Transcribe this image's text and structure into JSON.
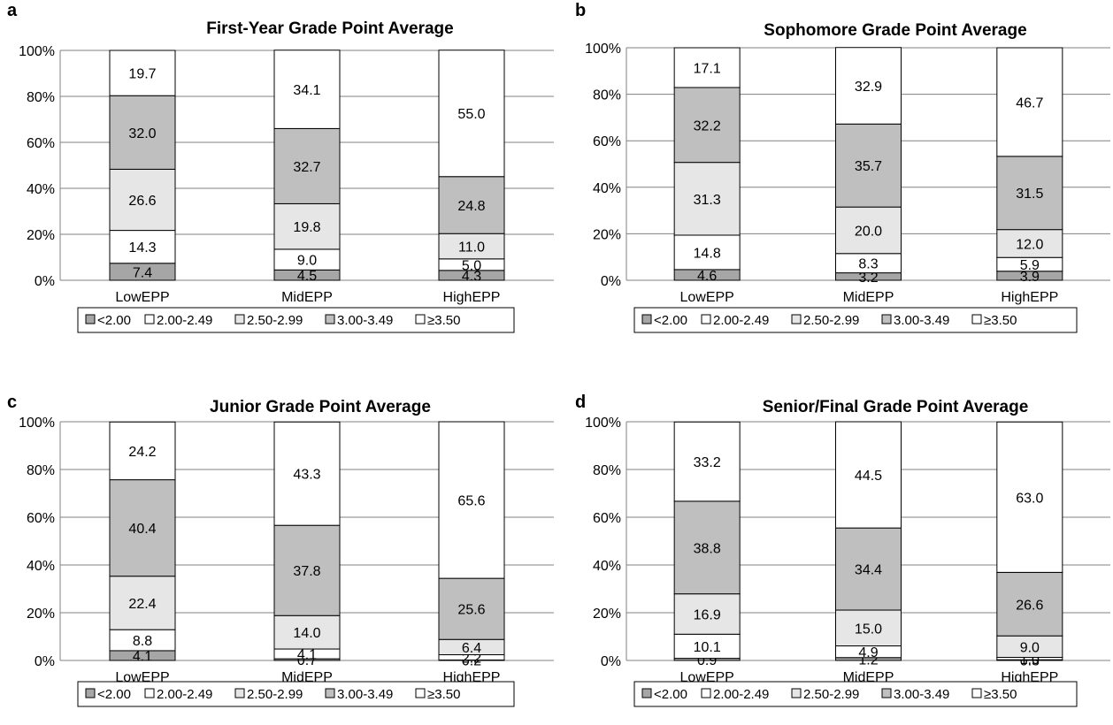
{
  "colors": {
    "lt2": "#a6a6a6",
    "r200": "#ffffff",
    "r250": "#e6e6e6",
    "r300": "#bfbfbf",
    "ge350": "#ffffff",
    "grid": "#808080",
    "border": "#000000"
  },
  "chart_data": [
    {
      "panel": "a",
      "type": "bar",
      "stacked": "percent",
      "title": "First-Year Grade Point Average",
      "categories": [
        "LowEPP",
        "MidEPP",
        "HighEPP"
      ],
      "series": [
        {
          "name": "<2.00",
          "values": [
            7.4,
            4.5,
            4.3
          ]
        },
        {
          "name": "2.00-2.49",
          "values": [
            14.3,
            9.0,
            5.0
          ]
        },
        {
          "name": "2.50-2.99",
          "values": [
            26.6,
            19.8,
            11.0
          ]
        },
        {
          "name": "3.00-3.49",
          "values": [
            32.0,
            32.7,
            24.8
          ]
        },
        {
          "name": "≥3.50",
          "values": [
            19.7,
            34.1,
            55.0
          ]
        }
      ],
      "yticks": [
        "0%",
        "20%",
        "40%",
        "60%",
        "80%",
        "100%"
      ],
      "ylim": [
        0,
        100
      ],
      "grid": true,
      "legend": "bottom"
    },
    {
      "panel": "b",
      "type": "bar",
      "stacked": "percent",
      "title": "Sophomore Grade Point Average",
      "categories": [
        "LowEPP",
        "MidEPP",
        "HighEPP"
      ],
      "series": [
        {
          "name": "<2.00",
          "values": [
            4.6,
            3.2,
            3.9
          ]
        },
        {
          "name": "2.00-2.49",
          "values": [
            14.8,
            8.3,
            5.9
          ]
        },
        {
          "name": "2.50-2.99",
          "values": [
            31.3,
            20.0,
            12.0
          ]
        },
        {
          "name": "3.00-3.49",
          "values": [
            32.2,
            35.7,
            31.5
          ]
        },
        {
          "name": "≥3.50",
          "values": [
            17.1,
            32.9,
            46.7
          ]
        }
      ],
      "yticks": [
        "0%",
        "20%",
        "40%",
        "60%",
        "80%",
        "100%"
      ],
      "ylim": [
        0,
        100
      ],
      "grid": true,
      "legend": "bottom"
    },
    {
      "panel": "c",
      "type": "bar",
      "stacked": "percent",
      "title": "Junior Grade Point Average",
      "categories": [
        "LowEPP",
        "MidEPP",
        "HighEPP"
      ],
      "series": [
        {
          "name": "<2.00",
          "values": [
            4.1,
            0.7,
            0.2
          ]
        },
        {
          "name": "2.00-2.49",
          "values": [
            8.8,
            4.1,
            2.2
          ]
        },
        {
          "name": "2.50-2.99",
          "values": [
            22.4,
            14.0,
            6.4
          ]
        },
        {
          "name": "3.00-3.49",
          "values": [
            40.4,
            37.8,
            25.6
          ]
        },
        {
          "name": "≥3.50",
          "values": [
            24.2,
            43.3,
            65.6
          ]
        }
      ],
      "yticks": [
        "0%",
        "20%",
        "40%",
        "60%",
        "80%",
        "100%"
      ],
      "ylim": [
        0,
        100
      ],
      "grid": true,
      "legend": "bottom"
    },
    {
      "panel": "d",
      "type": "bar",
      "stacked": "percent",
      "title": "Senior/Final Grade Point Average",
      "categories": [
        "LowEPP",
        "MidEPP",
        "HighEPP"
      ],
      "series": [
        {
          "name": "<2.00",
          "values": [
            0.9,
            1.2,
            0.3
          ]
        },
        {
          "name": "2.00-2.49",
          "values": [
            10.1,
            4.9,
            1.0
          ]
        },
        {
          "name": "2.50-2.99",
          "values": [
            16.9,
            15.0,
            9.0
          ]
        },
        {
          "name": "3.00-3.49",
          "values": [
            38.8,
            34.4,
            26.6
          ]
        },
        {
          "name": "≥3.50",
          "values": [
            33.2,
            44.5,
            63.0
          ]
        }
      ],
      "yticks": [
        "0%",
        "20%",
        "40%",
        "60%",
        "80%",
        "100%"
      ],
      "ylim": [
        0,
        100
      ],
      "grid": true,
      "legend": "bottom"
    }
  ]
}
